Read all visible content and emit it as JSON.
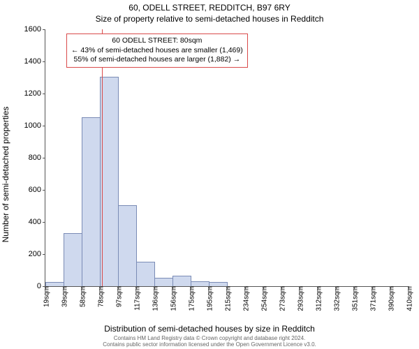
{
  "title_main": "60, ODELL STREET, REDDITCH, B97 6RY",
  "title_sub": "Size of property relative to semi-detached houses in Redditch",
  "y_label": "Number of semi-detached properties",
  "x_label": "Distribution of semi-detached houses by size in Redditch",
  "footer_line1": "Contains HM Land Registry data © Crown copyright and database right 2024.",
  "footer_line2": "Contains public sector information licensed under the Open Government Licence v3.0.",
  "chart": {
    "type": "histogram",
    "ylim": [
      0,
      1600
    ],
    "ytick_step": 200,
    "y_ticks": [
      0,
      200,
      400,
      600,
      800,
      1000,
      1200,
      1400,
      1600
    ],
    "x_ticks": [
      "19sqm",
      "39sqm",
      "58sqm",
      "78sqm",
      "97sqm",
      "117sqm",
      "136sqm",
      "156sqm",
      "175sqm",
      "195sqm",
      "215sqm",
      "234sqm",
      "254sqm",
      "273sqm",
      "293sqm",
      "312sqm",
      "332sqm",
      "351sqm",
      "371sqm",
      "390sqm",
      "410sqm"
    ],
    "bar_fill": "#cfd9ee",
    "bar_stroke": "#7a8bb5",
    "highlight_color": "#d94a4a",
    "grid_color": "#555555",
    "background": "#ffffff",
    "values": [
      20,
      325,
      1050,
      1300,
      500,
      150,
      50,
      60,
      25,
      20,
      0,
      0,
      0,
      0,
      0,
      0,
      0,
      0,
      0,
      0
    ],
    "highlight_x": 80,
    "x_min": 19,
    "x_max": 410
  },
  "callout": {
    "line1": "60 ODELL STREET: 80sqm",
    "line2": "← 43% of semi-detached houses are smaller (1,469)",
    "line3": "55% of semi-detached houses are larger (1,882) →"
  }
}
